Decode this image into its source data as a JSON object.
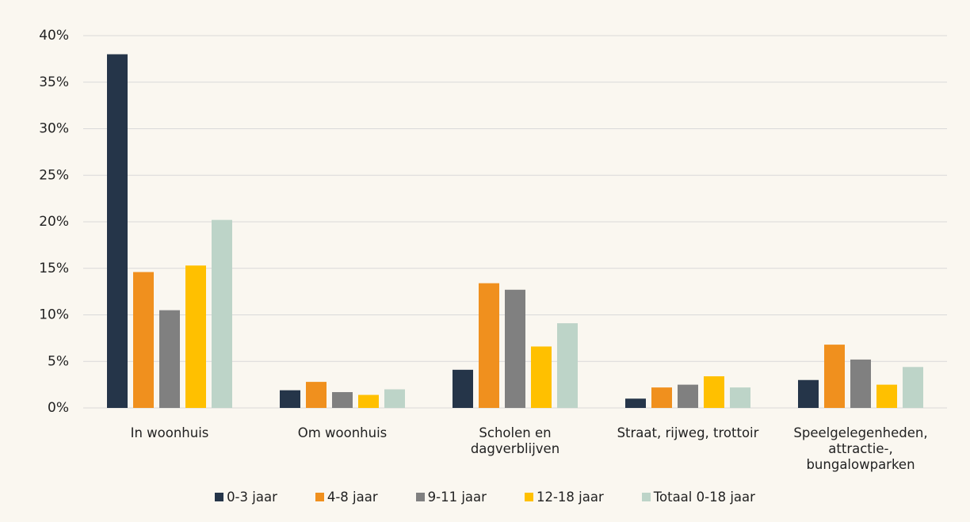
{
  "chart_data": {
    "type": "bar",
    "categories": [
      "In woonhuis",
      "Om woonhuis",
      "Scholen en dagverblijven",
      "Straat, rijweg, trottoir",
      "Speelgelegenheden, attractie-, bungalowparken"
    ],
    "series": [
      {
        "name": "0-3 jaar",
        "color": "#253549",
        "values": [
          38,
          1.9,
          4.1,
          1.0,
          3.0
        ]
      },
      {
        "name": "4-8 jaar",
        "color": "#f0901e",
        "values": [
          14.6,
          2.8,
          13.4,
          2.2,
          6.8
        ]
      },
      {
        "name": "9-11 jaar",
        "color": "#808080",
        "values": [
          10.5,
          1.7,
          12.7,
          2.5,
          5.2
        ]
      },
      {
        "name": "12-18 jaar",
        "color": "#ffc000",
        "values": [
          15.3,
          1.4,
          6.6,
          3.4,
          2.5
        ]
      },
      {
        "name": "Totaal 0-18 jaar",
        "color": "#bdd4c8",
        "values": [
          20.2,
          2.0,
          9.1,
          2.2,
          4.4
        ]
      }
    ],
    "ylim": [
      0,
      40
    ],
    "yticks": [
      {
        "value": 0,
        "label": "0%"
      },
      {
        "value": 5,
        "label": "5%"
      },
      {
        "value": 10,
        "label": "10%"
      },
      {
        "value": 15,
        "label": "15%"
      },
      {
        "value": 20,
        "label": "20%"
      },
      {
        "value": 25,
        "label": "25%"
      },
      {
        "value": 30,
        "label": "30%"
      },
      {
        "value": 35,
        "label": "35%"
      },
      {
        "value": 40,
        "label": "40%"
      }
    ],
    "grid": true,
    "legend": "bottom"
  }
}
